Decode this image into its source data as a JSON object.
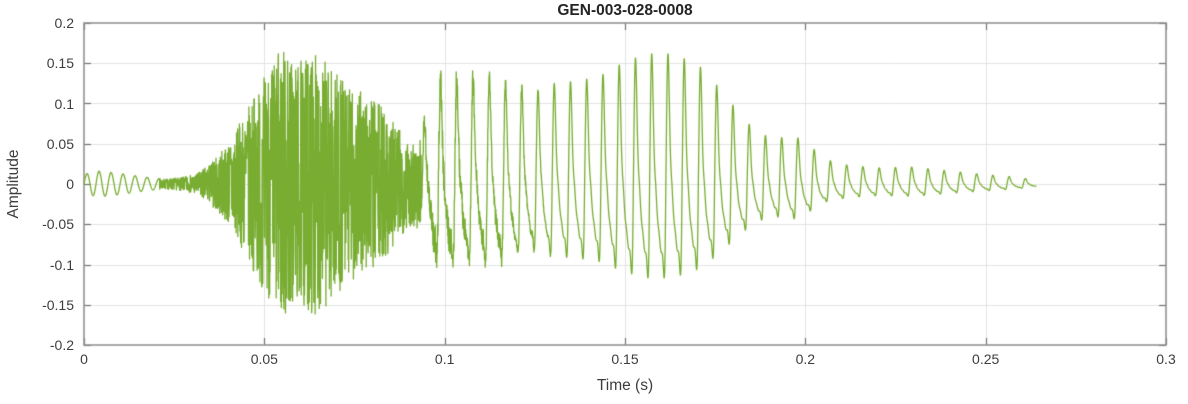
{
  "chart_data": {
    "type": "line",
    "title": "GEN-003-028-0008",
    "xlabel": "Time (s)",
    "ylabel": "Amplitude",
    "xlim": [
      0,
      0.3
    ],
    "ylim": [
      -0.2,
      0.2
    ],
    "xticks": [
      0,
      0.05,
      0.1,
      0.15,
      0.2,
      0.25,
      0.3
    ],
    "xtick_labels": [
      "0",
      "0.05",
      "0.1",
      "0.15",
      "0.2",
      "0.25",
      "0.3"
    ],
    "yticks": [
      -0.2,
      -0.15,
      -0.1,
      -0.05,
      0,
      0.05,
      0.1,
      0.15,
      0.2
    ],
    "ytick_labels": [
      "-0.2",
      "-0.15",
      "-0.1",
      "-0.05",
      "0",
      "0.05",
      "0.1",
      "0.15",
      "0.2"
    ],
    "grid": true,
    "legend": null,
    "colors": {
      "line": "#78AD32",
      "grid": "#e3e3e3",
      "axis_box": "#8c8c8c",
      "tick": "#737373",
      "tick_label": "#3d3d3d",
      "title": "#242424",
      "axis_label": "#3d3d3d",
      "background": "#ffffff"
    },
    "signal": {
      "description": "Speech-like audio waveform: faint 300 Hz ripple 0-0.02 s, broadband fricative noise burst 0.03-0.095 s peaking near +0.175/-0.16 around t=0.055-0.065 s, quasi-periodic voiced segment ~222 Hz from 0.095 s with positive peaks up to +0.16 and troughs near -0.11 around t=0.15-0.165 s, decaying to a small ~230 Hz ripple that ends near t=0.264 s",
      "t_end": 0.264,
      "sample_dt": 6e-05,
      "envelope_points": [
        [
          0.0,
          0.012
        ],
        [
          0.004,
          0.016
        ],
        [
          0.01,
          0.013
        ],
        [
          0.016,
          0.009
        ],
        [
          0.022,
          0.006
        ],
        [
          0.027,
          0.008
        ],
        [
          0.031,
          0.012
        ],
        [
          0.035,
          0.025
        ],
        [
          0.04,
          0.05
        ],
        [
          0.045,
          0.09
        ],
        [
          0.05,
          0.135
        ],
        [
          0.055,
          0.172
        ],
        [
          0.059,
          0.15
        ],
        [
          0.064,
          0.163
        ],
        [
          0.068,
          0.148
        ],
        [
          0.073,
          0.122
        ],
        [
          0.078,
          0.112
        ],
        [
          0.082,
          0.1
        ],
        [
          0.086,
          0.078
        ],
        [
          0.09,
          0.052
        ],
        [
          0.0935,
          0.06
        ],
        [
          0.097,
          0.13
        ],
        [
          0.101,
          0.137
        ],
        [
          0.107,
          0.13
        ],
        [
          0.113,
          0.135
        ],
        [
          0.118,
          0.125
        ],
        [
          0.124,
          0.115
        ],
        [
          0.13,
          0.125
        ],
        [
          0.137,
          0.128
        ],
        [
          0.143,
          0.134
        ],
        [
          0.15,
          0.152
        ],
        [
          0.156,
          0.162
        ],
        [
          0.162,
          0.162
        ],
        [
          0.167,
          0.155
        ],
        [
          0.171,
          0.145
        ],
        [
          0.176,
          0.12
        ],
        [
          0.181,
          0.092
        ],
        [
          0.186,
          0.066
        ],
        [
          0.191,
          0.056
        ],
        [
          0.197,
          0.06
        ],
        [
          0.201,
          0.048
        ],
        [
          0.206,
          0.03
        ],
        [
          0.212,
          0.023
        ],
        [
          0.22,
          0.02
        ],
        [
          0.23,
          0.021
        ],
        [
          0.24,
          0.016
        ],
        [
          0.249,
          0.012
        ],
        [
          0.257,
          0.009
        ],
        [
          0.264,
          0.005
        ]
      ],
      "segments": [
        {
          "t0": 0.0,
          "t1": 0.021,
          "kind": "tone",
          "freq": 300
        },
        {
          "t0": 0.021,
          "t1": 0.0935,
          "kind": "noise"
        },
        {
          "t0": 0.0935,
          "t1": 0.264,
          "kind": "voiced",
          "freq": 222,
          "neg_ratio": 0.72,
          "jitter": 0.18,
          "jitter_fade": [
            0.095,
            0.132
          ]
        }
      ]
    }
  }
}
